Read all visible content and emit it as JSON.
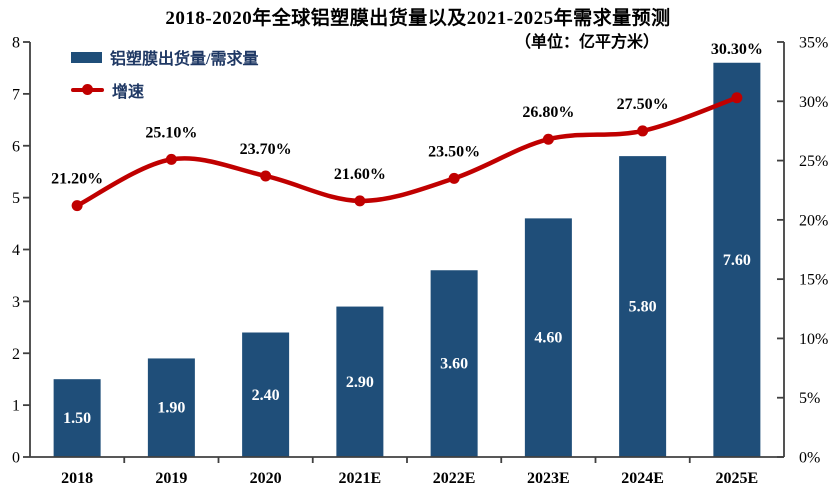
{
  "colors": {
    "bar": "#1F4E79",
    "line": "#C00000",
    "legend_text": "#1F3864",
    "axis": "#404040",
    "bar_value_label": "#FFFFFF",
    "data_label": "#000000"
  },
  "chart_data": {
    "type": "bar+line",
    "title": "2018-2020年全球铝塑膜出货量以及2021-2025年需求量预测",
    "subtitle": "（单位：亿平方米）",
    "categories": [
      "2018",
      "2019",
      "2020",
      "2021E",
      "2022E",
      "2023E",
      "2024E",
      "2025E"
    ],
    "series": [
      {
        "name": "铝塑膜出货量/需求量",
        "type": "bar",
        "axis": "left",
        "values": [
          1.5,
          1.9,
          2.4,
          2.9,
          3.6,
          4.6,
          5.8,
          7.6
        ],
        "labels": [
          "1.50",
          "1.90",
          "2.40",
          "2.90",
          "3.60",
          "4.60",
          "5.80",
          "7.60"
        ],
        "color": "#1F4E79"
      },
      {
        "name": "增速",
        "type": "line",
        "axis": "right",
        "values": [
          21.2,
          25.1,
          23.7,
          21.6,
          23.5,
          26.8,
          27.5,
          30.3
        ],
        "labels": [
          "21.20%",
          "25.10%",
          "23.70%",
          "21.60%",
          "23.50%",
          "26.80%",
          "27.50%",
          "30.30%"
        ],
        "color": "#C00000"
      }
    ],
    "left_axis": {
      "min": 0,
      "max": 8,
      "ticks": [
        "0",
        "1",
        "2",
        "3",
        "4",
        "5",
        "6",
        "7",
        "8"
      ]
    },
    "right_axis": {
      "min": 0,
      "max": 35,
      "ticks": [
        "0%",
        "5%",
        "10%",
        "15%",
        "20%",
        "25%",
        "30%",
        "35%"
      ]
    },
    "grid": false,
    "legend_position": "top-left-inside",
    "line_smooth": true
  }
}
